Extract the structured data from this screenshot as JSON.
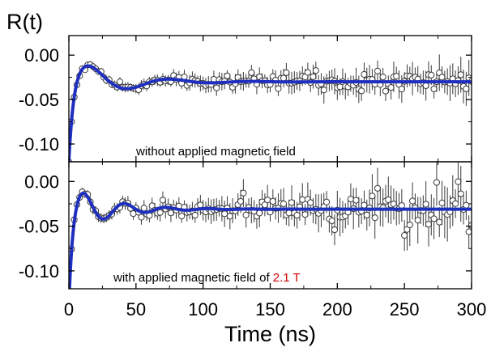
{
  "chart_data": {
    "type": "scatter",
    "ylabel": "R(t)",
    "xlabel": "Time (ns)",
    "xlim": [
      0,
      300
    ],
    "xticks": [
      "0",
      "50",
      "100",
      "150",
      "200",
      "250",
      "300"
    ],
    "grid": false,
    "colors": {
      "fit": "#1f2fbf",
      "data": "#3a3a3a",
      "annotation_highlight": "#d40000"
    },
    "panels": [
      {
        "name": "top",
        "ylim": [
          -0.12,
          0.022
        ],
        "yticks": [
          0.0,
          -0.05,
          -0.1
        ],
        "ytick_labels": [
          "0.00",
          "-0.05",
          "-0.10"
        ],
        "annotation_prefix": "without applied magnetic field",
        "annotation_highlight": "",
        "fit": {
          "kind": "damped_oscillation",
          "baseline": -0.03,
          "depth": -0.09,
          "rise_tau": 3.5,
          "amp": 0.03,
          "period": 62,
          "phase_peak": 15,
          "decay_tau": 33
        },
        "data_noise": {
          "start": 0.0015,
          "end": 0.007,
          "err_start": 0.003,
          "err_end": 0.017,
          "step_ns": 2
        }
      },
      {
        "name": "bottom",
        "ylim": [
          -0.12,
          0.022
        ],
        "yticks": [
          0.0,
          -0.05,
          -0.1
        ],
        "ytick_labels": [
          "0.00",
          "-0.05",
          "-0.10"
        ],
        "annotation_prefix": "with applied magnetic field of ",
        "annotation_highlight": "2.1 T",
        "fit": {
          "kind": "damped_oscillation",
          "baseline": -0.031,
          "depth": -0.089,
          "rise_tau": 2.5,
          "amp": 0.028,
          "period": 31,
          "phase_peak": 11,
          "decay_tau": 28
        },
        "data_noise": {
          "start": 0.002,
          "end": 0.013,
          "err_start": 0.004,
          "err_end": 0.024,
          "step_ns": 2
        }
      }
    ]
  }
}
